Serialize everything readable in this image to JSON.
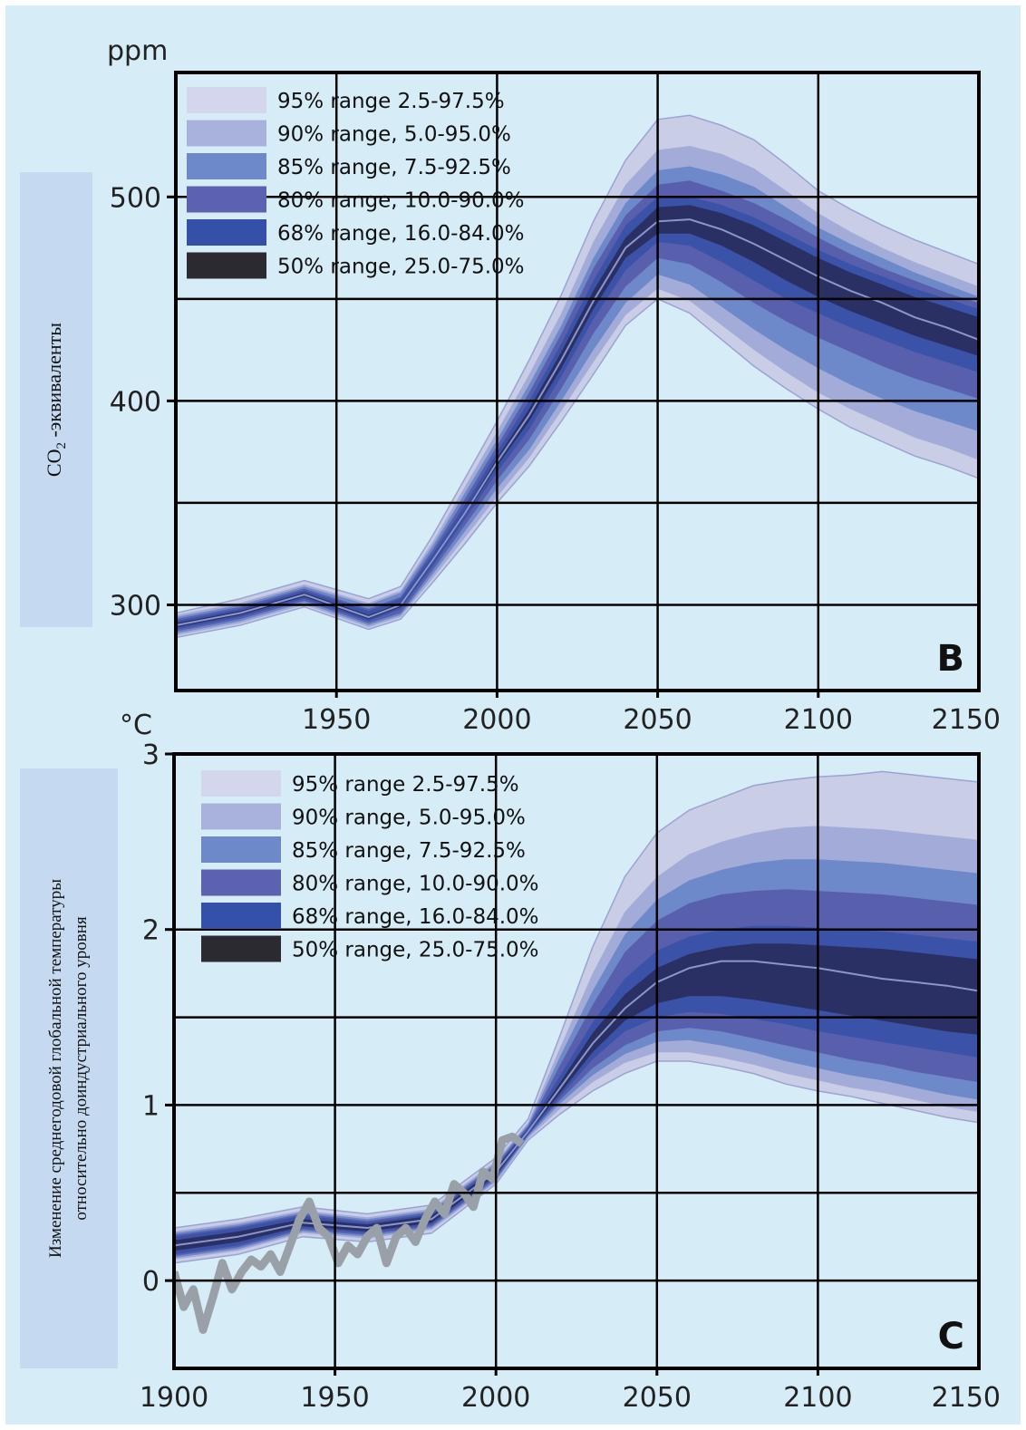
{
  "colors": {
    "background": "#d6ecf7",
    "label_box": "#c5daf0",
    "grid": "#000000",
    "band_95": "#c9cde6",
    "band_90": "#a3acd8",
    "band_85": "#6e89c9",
    "band_80": "#5860ad",
    "band_68": "#3a52a8",
    "band_50": "#2a3064",
    "median": "#8a96cc",
    "observed": "#9aa0a8"
  },
  "legend": [
    {
      "label": "95% range 2.5-97.5%",
      "color": "#d3d6ec"
    },
    {
      "label": "90% range, 5.0-95.0%",
      "color": "#a9b2dc"
    },
    {
      "label": "85% range, 7.5-92.5%",
      "color": "#6e89c9"
    },
    {
      "label": "80% range, 10.0-90.0%",
      "color": "#5d62b0"
    },
    {
      "label": "68% range, 16.0-84.0%",
      "color": "#3450a8"
    },
    {
      "label": "50% range, 25.0-75.0%",
      "color": "#2a2a30"
    }
  ],
  "chart_data": [
    {
      "type": "area",
      "panel_label": "B",
      "unit_label": "ppm",
      "ylabel_parts": {
        "main": "CO",
        "sub": "2",
        "rest": " -эквиваленты"
      },
      "xlim": [
        1900,
        2150
      ],
      "ylim": [
        258,
        561
      ],
      "xticks": [
        1950,
        2000,
        2050,
        2100,
        2150
      ],
      "xtick_labels": [
        "1950",
        "2000",
        "2050",
        "2100",
        "2150"
      ],
      "yticks": [
        300,
        400,
        500
      ],
      "ytick_labels": [
        "300",
        "400",
        "500"
      ],
      "grid_x": [
        1950,
        2000,
        2050,
        2100
      ],
      "grid_y": [
        300,
        350,
        400,
        450,
        500
      ],
      "grid": true,
      "legend_position": "top-left",
      "x": [
        1900,
        1920,
        1940,
        1960,
        1970,
        1980,
        1990,
        2000,
        2010,
        2020,
        2030,
        2040,
        2050,
        2060,
        2070,
        2080,
        2090,
        2100,
        2110,
        2120,
        2130,
        2140,
        2150
      ],
      "median": [
        290,
        296,
        305,
        294,
        300,
        322,
        345,
        370,
        393,
        420,
        449,
        475,
        488,
        489,
        484,
        477,
        469,
        461,
        454,
        448,
        441,
        436,
        430
      ],
      "bands": [
        {
          "name": "95% range 2.5-97.5%",
          "lower": [
            284,
            290,
            299,
            288,
            293,
            311,
            330,
            350,
            368,
            390,
            413,
            437,
            450,
            443,
            430,
            417,
            406,
            396,
            387,
            380,
            373,
            368,
            362
          ],
          "upper": [
            296,
            303,
            312,
            303,
            309,
            334,
            362,
            390,
            420,
            452,
            488,
            518,
            538,
            540,
            535,
            528,
            516,
            503,
            494,
            486,
            479,
            473,
            467
          ]
        },
        {
          "name": "90% range, 5.0-95.0%",
          "lower": [
            285,
            291,
            300,
            289,
            294,
            313,
            333,
            353,
            372,
            395,
            419,
            442,
            455,
            449,
            437,
            425,
            414,
            404,
            396,
            389,
            382,
            377,
            371
          ],
          "upper": [
            295,
            301,
            310,
            301,
            307,
            331,
            358,
            385,
            413,
            443,
            478,
            506,
            523,
            525,
            521,
            514,
            503,
            492,
            483,
            475,
            468,
            462,
            456
          ]
        },
        {
          "name": "85% range, 7.5-92.5%",
          "lower": [
            286,
            292,
            301,
            290,
            295,
            315,
            336,
            357,
            376,
            400,
            425,
            448,
            462,
            457,
            446,
            435,
            425,
            416,
            408,
            401,
            395,
            390,
            385
          ],
          "upper": [
            294,
            300,
            309,
            300,
            306,
            329,
            355,
            381,
            408,
            437,
            470,
            497,
            513,
            515,
            511,
            505,
            495,
            485,
            477,
            470,
            463,
            457,
            451
          ]
        },
        {
          "name": "80% range, 10.0-90.0%",
          "lower": [
            287,
            293,
            302,
            291,
            296,
            317,
            339,
            361,
            381,
            406,
            433,
            456,
            470,
            467,
            458,
            448,
            439,
            431,
            424,
            417,
            411,
            406,
            401
          ],
          "upper": [
            293,
            299,
            308,
            298,
            304,
            327,
            352,
            378,
            404,
            433,
            465,
            491,
            506,
            508,
            503,
            497,
            489,
            480,
            472,
            465,
            459,
            453,
            448
          ]
        },
        {
          "name": "68% range, 16.0-84.0%",
          "lower": [
            288,
            294,
            303,
            292,
            298,
            319,
            342,
            365,
            386,
            412,
            440,
            464,
            478,
            476,
            468,
            459,
            450,
            443,
            436,
            430,
            424,
            419,
            414
          ],
          "upper": [
            292,
            298,
            307,
            297,
            303,
            325,
            349,
            375,
            400,
            428,
            459,
            486,
            500,
            500,
            496,
            490,
            482,
            474,
            467,
            461,
            455,
            450,
            445
          ]
        },
        {
          "name": "50% range, 25.0-75.0%",
          "lower": [
            289,
            295,
            304,
            293,
            299,
            321,
            344,
            368,
            390,
            416,
            445,
            470,
            482,
            482,
            476,
            468,
            459,
            451,
            444,
            438,
            432,
            427,
            422
          ],
          "upper": [
            291,
            297,
            306,
            295,
            301,
            323,
            346,
            372,
            396,
            424,
            454,
            480,
            495,
            496,
            492,
            486,
            478,
            470,
            463,
            457,
            451,
            446,
            441
          ]
        }
      ]
    },
    {
      "type": "area",
      "panel_label": "C",
      "unit_label": "°C",
      "ylabel_lines": [
        "Изменение среднегодовой глобальной температуры",
        "относительно доиндустриального уровня"
      ],
      "xlim": [
        1900,
        2150
      ],
      "ylim": [
        -0.5,
        3
      ],
      "xticks": [
        1900,
        1950,
        2000,
        2050,
        2100,
        2150
      ],
      "xtick_labels": [
        "1900",
        "1950",
        "2000",
        "2050",
        "2100",
        "2150"
      ],
      "yticks": [
        0,
        1,
        2,
        3
      ],
      "ytick_labels": [
        "0",
        "1",
        "2",
        "3"
      ],
      "grid_x": [
        1950,
        2000,
        2050,
        2100
      ],
      "grid_y": [
        0,
        0.5,
        1,
        1.5,
        2
      ],
      "grid": true,
      "legend_position": "top-left",
      "x": [
        1900,
        1920,
        1940,
        1960,
        1980,
        2000,
        2010,
        2020,
        2030,
        2040,
        2050,
        2060,
        2070,
        2080,
        2090,
        2100,
        2110,
        2120,
        2130,
        2140,
        2150
      ],
      "median": [
        0.2,
        0.25,
        0.33,
        0.3,
        0.35,
        0.62,
        0.85,
        1.1,
        1.35,
        1.55,
        1.7,
        1.78,
        1.82,
        1.82,
        1.8,
        1.78,
        1.75,
        1.72,
        1.7,
        1.68,
        1.65
      ],
      "bands": [
        {
          "name": "95% range 2.5-97.5%",
          "lower": [
            0.1,
            0.15,
            0.25,
            0.22,
            0.27,
            0.55,
            0.8,
            0.95,
            1.08,
            1.18,
            1.25,
            1.25,
            1.22,
            1.18,
            1.12,
            1.08,
            1.05,
            1.01,
            0.97,
            0.93,
            0.9
          ],
          "upper": [
            0.3,
            0.35,
            0.42,
            0.38,
            0.43,
            0.7,
            0.92,
            1.4,
            1.9,
            2.3,
            2.55,
            2.68,
            2.75,
            2.82,
            2.85,
            2.87,
            2.88,
            2.9,
            2.88,
            2.86,
            2.84
          ]
        },
        {
          "name": "90% range, 5.0-95.0%",
          "lower": [
            0.12,
            0.17,
            0.27,
            0.24,
            0.29,
            0.56,
            0.81,
            0.98,
            1.13,
            1.24,
            1.3,
            1.3,
            1.27,
            1.23,
            1.18,
            1.14,
            1.1,
            1.07,
            1.03,
            0.99,
            0.96
          ],
          "upper": [
            0.28,
            0.33,
            0.4,
            0.36,
            0.41,
            0.68,
            0.9,
            1.33,
            1.75,
            2.1,
            2.3,
            2.43,
            2.5,
            2.55,
            2.58,
            2.59,
            2.58,
            2.57,
            2.55,
            2.53,
            2.51
          ]
        },
        {
          "name": "85% range, 7.5-92.5%",
          "lower": [
            0.13,
            0.18,
            0.28,
            0.25,
            0.3,
            0.57,
            0.82,
            1.01,
            1.17,
            1.29,
            1.36,
            1.37,
            1.34,
            1.3,
            1.25,
            1.21,
            1.17,
            1.14,
            1.1,
            1.06,
            1.03
          ],
          "upper": [
            0.27,
            0.32,
            0.39,
            0.35,
            0.4,
            0.67,
            0.89,
            1.28,
            1.65,
            1.97,
            2.17,
            2.28,
            2.34,
            2.38,
            2.4,
            2.4,
            2.39,
            2.38,
            2.36,
            2.34,
            2.32
          ]
        },
        {
          "name": "80% range, 10.0-90.0%",
          "lower": [
            0.14,
            0.19,
            0.29,
            0.26,
            0.31,
            0.58,
            0.83,
            1.03,
            1.21,
            1.34,
            1.42,
            1.44,
            1.42,
            1.38,
            1.34,
            1.3,
            1.26,
            1.23,
            1.19,
            1.16,
            1.13
          ],
          "upper": [
            0.26,
            0.31,
            0.38,
            0.34,
            0.39,
            0.66,
            0.88,
            1.23,
            1.57,
            1.87,
            2.05,
            2.15,
            2.2,
            2.22,
            2.23,
            2.22,
            2.21,
            2.2,
            2.18,
            2.16,
            2.14
          ]
        },
        {
          "name": "68% range, 16.0-84.0%",
          "lower": [
            0.15,
            0.2,
            0.3,
            0.27,
            0.32,
            0.59,
            0.83,
            1.05,
            1.26,
            1.42,
            1.5,
            1.53,
            1.52,
            1.49,
            1.46,
            1.42,
            1.39,
            1.36,
            1.33,
            1.3,
            1.27
          ],
          "upper": [
            0.25,
            0.3,
            0.37,
            0.33,
            0.38,
            0.65,
            0.87,
            1.17,
            1.47,
            1.72,
            1.88,
            1.96,
            2.0,
            2.02,
            2.02,
            2.01,
            2.0,
            1.99,
            1.97,
            1.95,
            1.93
          ]
        },
        {
          "name": "50% range, 25.0-75.0%",
          "lower": [
            0.17,
            0.22,
            0.31,
            0.28,
            0.33,
            0.6,
            0.84,
            1.07,
            1.3,
            1.48,
            1.58,
            1.62,
            1.62,
            1.6,
            1.57,
            1.54,
            1.51,
            1.48,
            1.45,
            1.42,
            1.4
          ],
          "upper": [
            0.23,
            0.28,
            0.35,
            0.32,
            0.37,
            0.64,
            0.86,
            1.13,
            1.41,
            1.63,
            1.78,
            1.86,
            1.9,
            1.92,
            1.92,
            1.91,
            1.9,
            1.89,
            1.87,
            1.85,
            1.83
          ]
        }
      ],
      "observed": {
        "x": [
          1900,
          1903,
          1906,
          1909,
          1912,
          1915,
          1918,
          1921,
          1924,
          1927,
          1930,
          1933,
          1936,
          1939,
          1942,
          1945,
          1948,
          1951,
          1954,
          1957,
          1960,
          1963,
          1966,
          1969,
          1972,
          1975,
          1978,
          1981,
          1984,
          1987,
          1990,
          1993,
          1996,
          1999,
          2002,
          2005,
          2008
        ],
        "y": [
          0.05,
          -0.15,
          -0.05,
          -0.28,
          -0.1,
          0.1,
          -0.05,
          0.05,
          0.12,
          0.08,
          0.15,
          0.05,
          0.2,
          0.35,
          0.45,
          0.3,
          0.25,
          0.1,
          0.2,
          0.15,
          0.25,
          0.3,
          0.1,
          0.25,
          0.3,
          0.22,
          0.35,
          0.45,
          0.38,
          0.55,
          0.5,
          0.42,
          0.62,
          0.58,
          0.8,
          0.82,
          0.78
        ]
      }
    }
  ]
}
